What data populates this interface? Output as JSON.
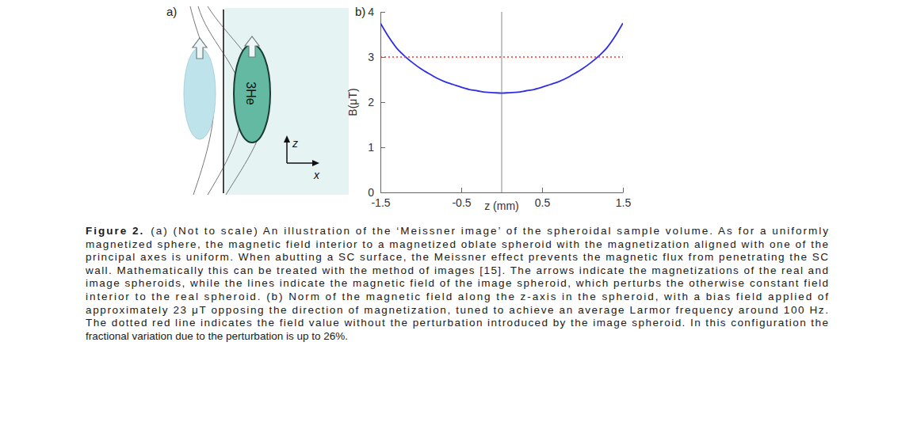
{
  "chart_data": {
    "type": "line",
    "x_label": "z (mm)",
    "y_label": "B(μT)",
    "x": [
      -1.5,
      -1.4,
      -1.3,
      -1.2,
      -1.1,
      -1.0,
      -0.9,
      -0.8,
      -0.7,
      -0.6,
      -0.5,
      -0.4,
      -0.3,
      -0.2,
      -0.1,
      0,
      0.1,
      0.2,
      0.3,
      0.4,
      0.5,
      0.6,
      0.7,
      0.8,
      0.9,
      1.0,
      1.1,
      1.2,
      1.3,
      1.4,
      1.5
    ],
    "series": [
      {
        "color": "#2e2ee6",
        "line_style": "solid",
        "values": [
          3.75,
          3.45,
          3.2,
          3.02,
          2.87,
          2.74,
          2.63,
          2.53,
          2.45,
          2.39,
          2.33,
          2.28,
          2.25,
          2.22,
          2.21,
          2.2,
          2.21,
          2.22,
          2.25,
          2.28,
          2.33,
          2.39,
          2.45,
          2.53,
          2.63,
          2.74,
          2.87,
          3.02,
          3.2,
          3.45,
          3.75
        ]
      },
      {
        "color": "#ff3030",
        "line_style": "dotted",
        "values": [
          3,
          3,
          3,
          3,
          3,
          3,
          3,
          3,
          3,
          3,
          3,
          3,
          3,
          3,
          3,
          3,
          3,
          3,
          3,
          3,
          3,
          3,
          3,
          3,
          3,
          3,
          3,
          3,
          3,
          3,
          3
        ]
      }
    ],
    "vertical_lines": [
      0
    ],
    "xlim": [
      -1.5,
      1.5
    ],
    "ylim": [
      0,
      4
    ],
    "xticks": [
      -1.5,
      -0.5,
      0.5,
      1.5
    ],
    "yticks": [
      0,
      1,
      2,
      3,
      4
    ],
    "grid": false
  },
  "figure": {
    "panels": {
      "a": "a)",
      "b": "b)"
    },
    "panel_a": {
      "sample_label": "3He",
      "axis_labels": {
        "z": "z",
        "x": "x"
      }
    },
    "caption": {
      "label": "Figure 2.",
      "lines": [
        "(a) (Not to scale) An illustration of the ‘Meissner image’ of the spheroidal sample volume. As for a uniformly",
        "magnetized sphere, the magnetic field interior to a magnetized oblate spheroid with the magnetization aligned with one of the",
        "principal axes is uniform. When abutting a SC surface, the Meissner effect prevents the magnetic flux from penetrating the SC",
        "wall. Mathematically this can be treated with the method of images [15]. The arrows indicate the magnetizations of the real and",
        "image spheroids, while the lines indicate the magnetic field of the image spheroid, which perturbs the otherwise constant field",
        "interior to the real spheroid. (b) Norm of the magnetic field along the z-axis in the spheroid, with a bias field applied of",
        "approximately 23 μT opposing the direction of magnetization, tuned to achieve an average Larmor frequency around 100 Hz.",
        "The dotted red line indicates the field value without the perturbation introduced by the image spheroid. In this configuration the",
        "fractional variation due to the perturbation is up to 26%."
      ]
    }
  }
}
